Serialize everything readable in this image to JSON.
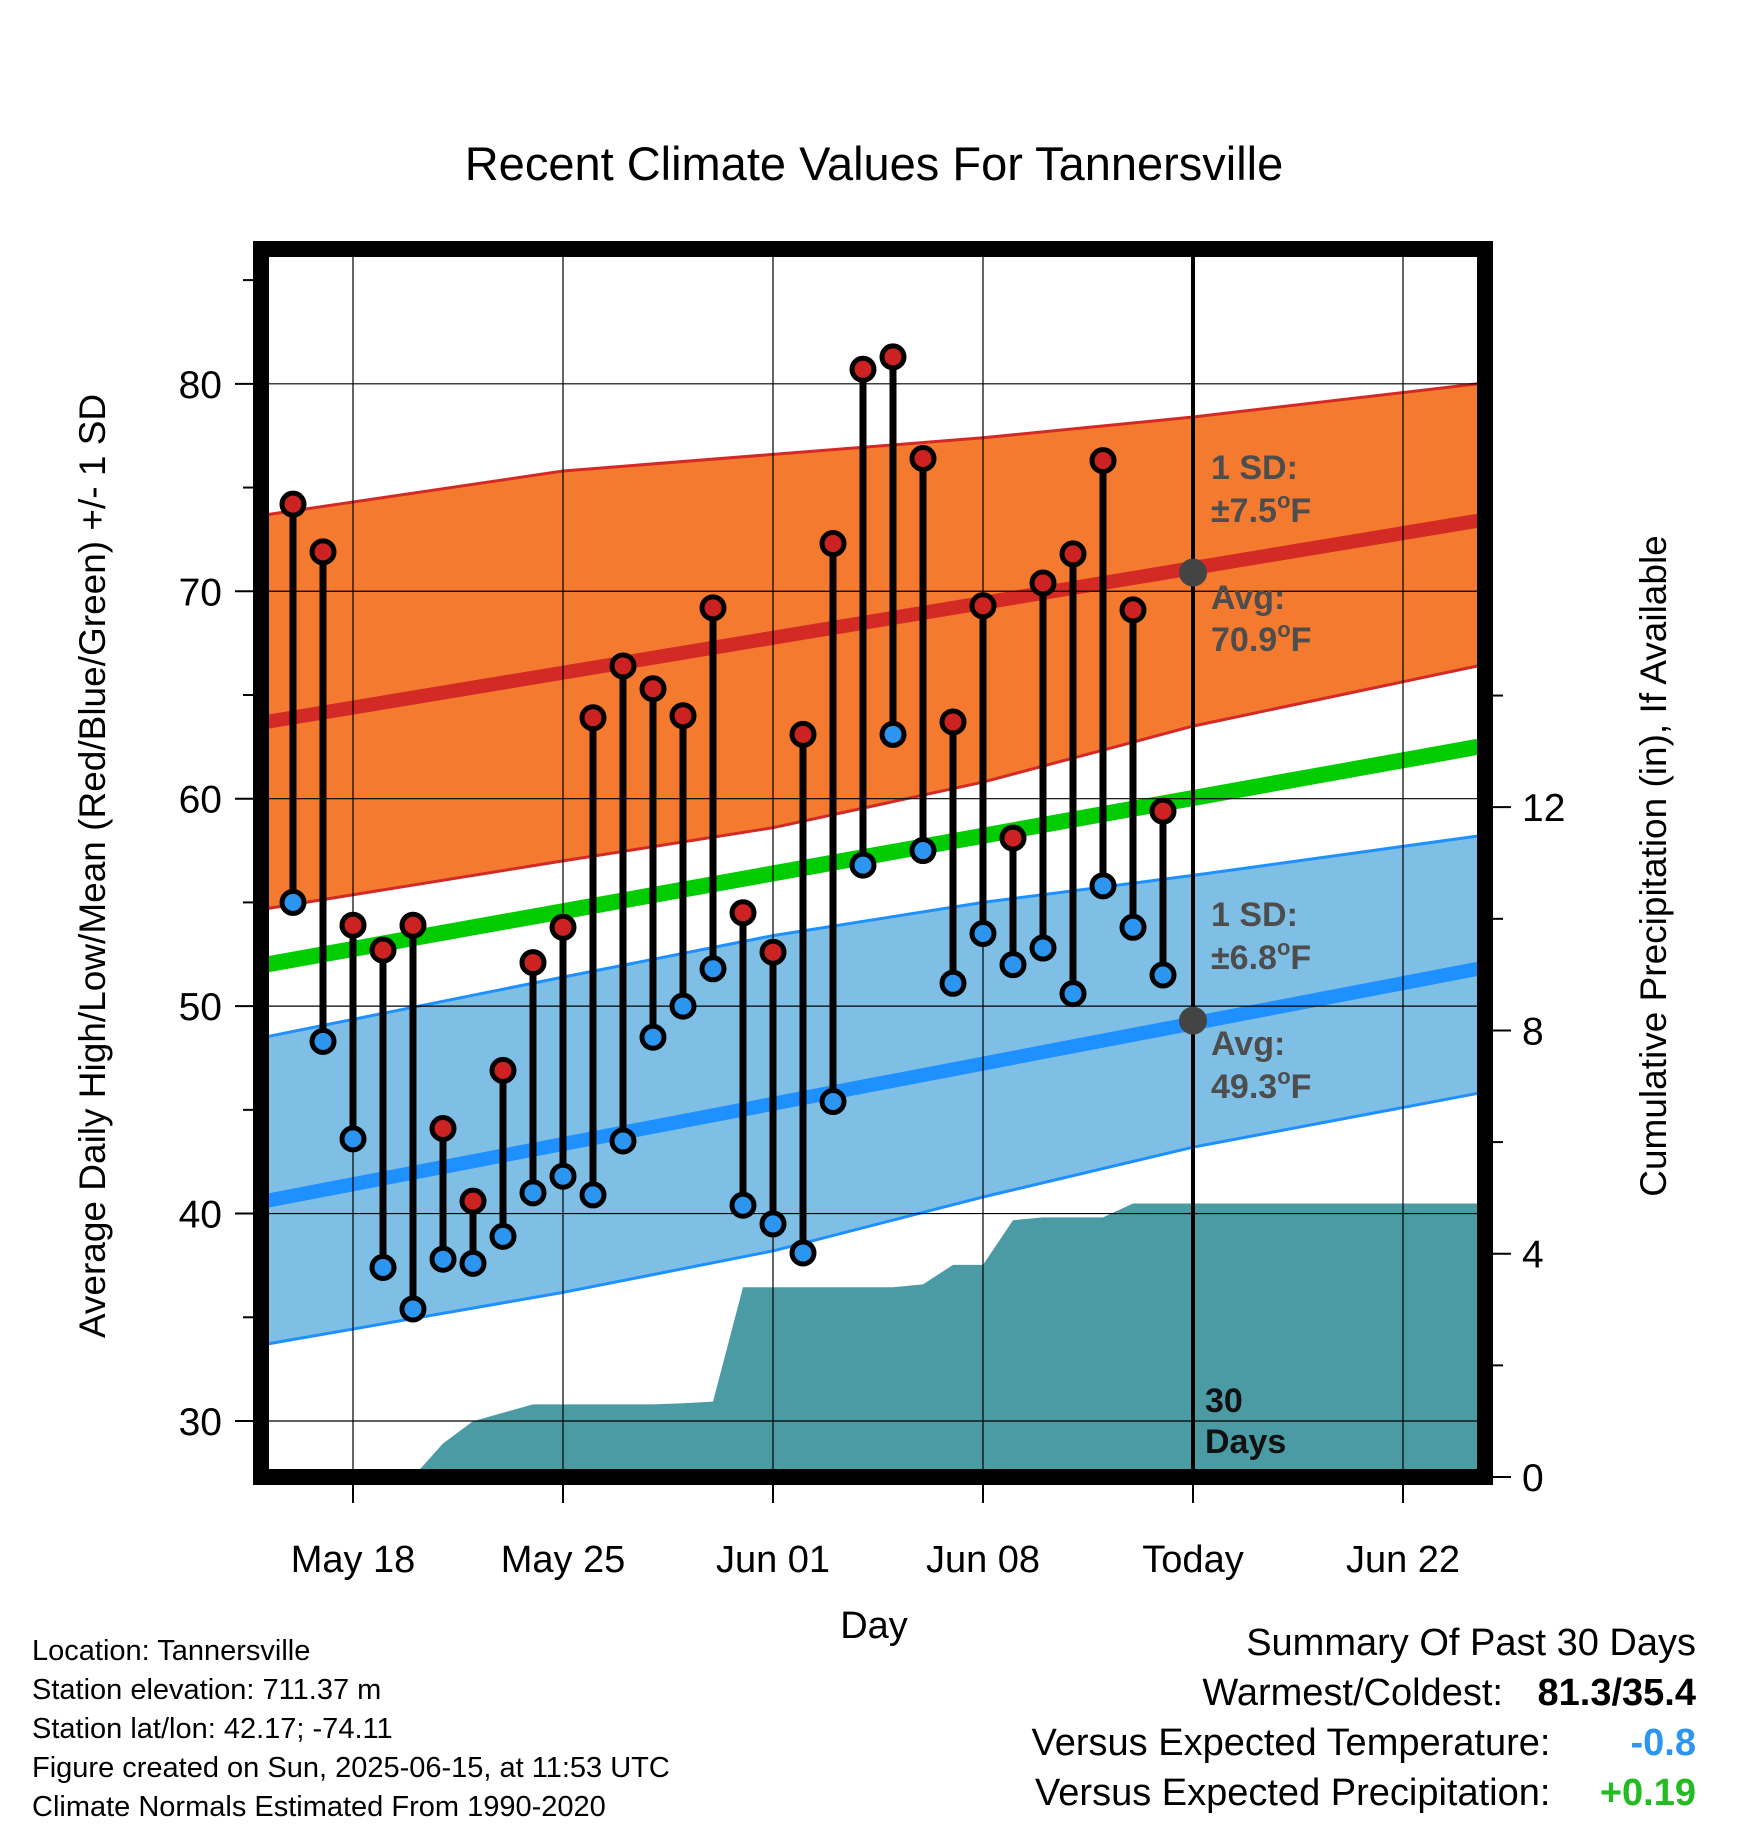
{
  "chart_data": {
    "type": "line",
    "title": "Recent Climate Values For Tannersville",
    "xlabel": "Day",
    "ylabel": "Average Daily High/Low/Mean (Red/Blue/Green) +/- 1 SD",
    "y2label": "Cumulative Precipitation (in), If Available",
    "ylim": [
      27.3,
      86.5
    ],
    "y_ticks": [
      30,
      40,
      50,
      60,
      70,
      80
    ],
    "y2lim": [
      0,
      22
    ],
    "y2_ticks": [
      0,
      4,
      8,
      12
    ],
    "x_range_days": [
      -32,
      9.5
    ],
    "x_ticks": [
      {
        "day": -28,
        "label": "May 18"
      },
      {
        "day": -21,
        "label": "May 25"
      },
      {
        "day": -14,
        "label": "Jun 01"
      },
      {
        "day": -7,
        "label": "Jun 08"
      },
      {
        "day": 0,
        "label": "Today"
      },
      {
        "day": 7,
        "label": "Jun 22"
      }
    ],
    "normals": {
      "high_mean": [
        [
          -31.3,
          63.6
        ],
        [
          9.5,
          73.4
        ]
      ],
      "high_upper": [
        [
          -31.3,
          73.6
        ],
        [
          -21,
          75.8
        ],
        [
          -14,
          76.6
        ],
        [
          -7,
          77.4
        ],
        [
          0,
          78.4
        ],
        [
          9.5,
          80.0
        ]
      ],
      "high_lower": [
        [
          -31.3,
          54.6
        ],
        [
          -21,
          57.0
        ],
        [
          -14,
          58.6
        ],
        [
          -7,
          60.8
        ],
        [
          0,
          63.5
        ],
        [
          9.5,
          66.4
        ]
      ],
      "mean": [
        [
          -31.3,
          51.9
        ],
        [
          9.5,
          62.5
        ]
      ],
      "low_mean": [
        [
          -31.3,
          40.5
        ],
        [
          9.5,
          51.8
        ]
      ],
      "low_upper": [
        [
          -31.3,
          48.4
        ],
        [
          -21,
          51.4
        ],
        [
          -14,
          53.4
        ],
        [
          -7,
          55.0
        ],
        [
          0,
          56.3
        ],
        [
          9.5,
          58.2
        ]
      ],
      "low_lower": [
        [
          -31.3,
          33.6
        ],
        [
          -21,
          36.2
        ],
        [
          -14,
          38.2
        ],
        [
          -7,
          40.8
        ],
        [
          0,
          43.2
        ],
        [
          9.5,
          45.8
        ]
      ]
    },
    "series": [
      {
        "name": "High",
        "x": [
          -30,
          -29,
          -28,
          -27,
          -26,
          -25,
          -24,
          -23,
          -22,
          -21,
          -20,
          -19,
          -18,
          -17,
          -16,
          -15,
          -14,
          -13,
          -12,
          -11,
          -10,
          -9,
          -8,
          -7,
          -6,
          -5,
          -4,
          -3,
          -2,
          -1
        ],
        "values": [
          74.2,
          71.9,
          53.9,
          52.7,
          53.9,
          44.1,
          40.6,
          46.9,
          52.1,
          53.8,
          63.9,
          66.4,
          65.3,
          64.0,
          69.2,
          54.5,
          52.6,
          63.1,
          72.3,
          80.7,
          81.3,
          76.4,
          63.7,
          69.3,
          58.1,
          70.4,
          71.8,
          76.3,
          69.1,
          59.4
        ]
      },
      {
        "name": "Low",
        "x": [
          -30,
          -29,
          -28,
          -27,
          -26,
          -25,
          -24,
          -23,
          -22,
          -21,
          -20,
          -19,
          -18,
          -17,
          -16,
          -15,
          -14,
          -13,
          -12,
          -11,
          -10,
          -9,
          -8,
          -7,
          -6,
          -5,
          -4,
          -3,
          -2,
          -1
        ],
        "values": [
          55.0,
          48.3,
          43.6,
          37.4,
          35.4,
          37.8,
          37.6,
          38.9,
          41.0,
          41.8,
          40.9,
          43.5,
          48.5,
          50.0,
          51.8,
          40.4,
          39.5,
          38.1,
          45.4,
          56.8,
          63.1,
          57.5,
          51.1,
          53.5,
          52.0,
          52.8,
          50.6,
          55.8,
          53.8,
          51.5
        ]
      },
      {
        "name": "Precipitation",
        "x": [
          -27,
          -26,
          -25,
          -24,
          -23,
          -22,
          -21,
          -20,
          -19,
          -18,
          -17,
          -16,
          -15,
          -14,
          -13,
          -12,
          -11,
          -10,
          -9,
          -8,
          -7,
          -6,
          -5,
          -4,
          -3,
          -2,
          -1,
          0,
          9.5
        ],
        "values": [
          0,
          0,
          0.6,
          1.0,
          1.15,
          1.3,
          1.3,
          1.3,
          1.3,
          1.3,
          1.32,
          1.35,
          3.4,
          3.4,
          3.4,
          3.4,
          3.4,
          3.4,
          3.45,
          3.8,
          3.8,
          4.6,
          4.65,
          4.65,
          4.65,
          4.9,
          4.9,
          4.9,
          4.9
        ]
      }
    ],
    "today_marks": {
      "high_avg": 70.9,
      "low_avg": 49.3
    },
    "annotations": {
      "high_sd_line1": "1 SD:",
      "high_sd_line2": "±7.5",
      "high_avg_line1": "Avg:",
      "high_avg_line2": "70.9",
      "low_sd_line1": "1 SD:",
      "low_sd_line2": "±6.8",
      "low_avg_line1": "Avg:",
      "low_avg_line2": "49.3",
      "degree": "o",
      "unit": "F",
      "days_line1": "30",
      "days_line2": "Days"
    },
    "grid": true,
    "colors": {
      "high_band": "#f47a2f",
      "high_line": "#d42a25",
      "mean_line": "#00cc00",
      "low_band": "#7fbfe6",
      "low_line": "#1e90ff",
      "precip": "#4a9ba4",
      "marker_high": "#cc2222",
      "marker_low": "#2b95f0",
      "annotation": "#4d4d4d"
    }
  },
  "footer": {
    "location": "Location: Tannersville",
    "elevation": "Station elevation: 711.37 m",
    "latlon": "Station lat/lon: 42.17; -74.11",
    "created": "Figure created on Sun, 2025-06-15, at 11:53 UTC",
    "normals": "Climate Normals Estimated From 1990-2020"
  },
  "summary": {
    "title": "Summary Of Past 30 Days",
    "warmest_label": "Warmest/Coldest:",
    "warmest_value": "81.3/35.4",
    "temp_label": "Versus Expected Temperature:",
    "temp_value": "-0.8",
    "temp_color": "#2b95f0",
    "precip_label": "Versus Expected Precipitation:",
    "precip_value": "+0.19",
    "precip_color": "#22bb22"
  }
}
